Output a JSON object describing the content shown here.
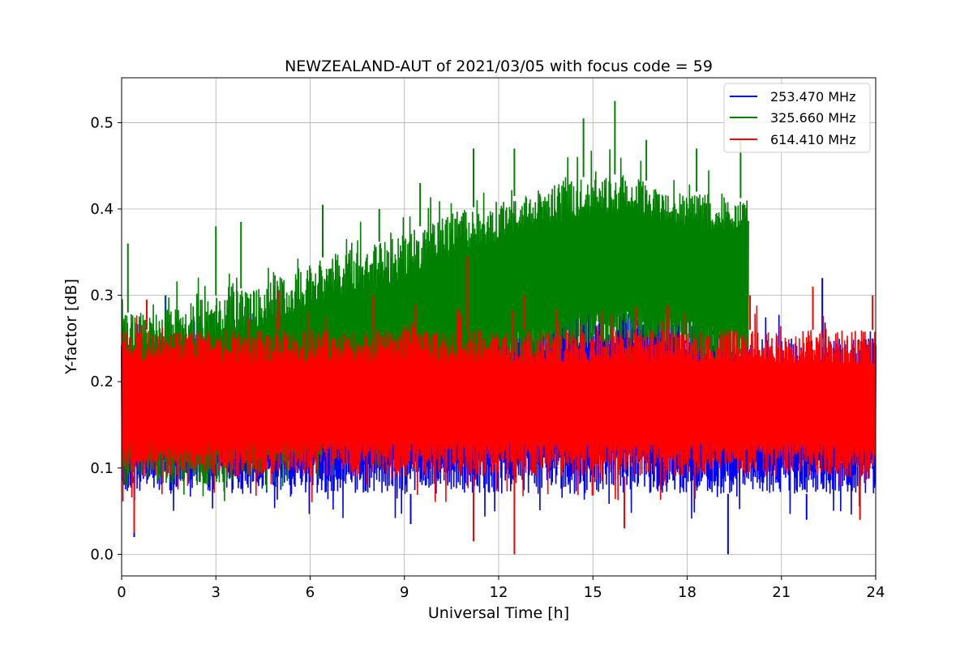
{
  "chart_data": {
    "type": "line",
    "title": "NEWZEALAND-AUT of 2021/03/05 with focus code = 59",
    "xlabel": "Universal Time [h]",
    "ylabel": "Y-factor [dB]",
    "xlim": [
      0,
      24
    ],
    "ylim": [
      -0.025,
      0.552
    ],
    "xticks": [
      0,
      3,
      6,
      9,
      12,
      15,
      18,
      21,
      24
    ],
    "xtick_labels": [
      "0",
      "3",
      "6",
      "9",
      "12",
      "15",
      "18",
      "21",
      "24"
    ],
    "yticks": [
      0.0,
      0.1,
      0.2,
      0.3,
      0.4,
      0.5
    ],
    "ytick_labels": [
      "0.0",
      "0.1",
      "0.2",
      "0.3",
      "0.4",
      "0.5"
    ],
    "grid": true,
    "legend_position": "top-right",
    "series": [
      {
        "name": "253.470 MHz",
        "color": "#0000ff",
        "x_hours": [
          0,
          1,
          2,
          3,
          4,
          5,
          6,
          7,
          8,
          9,
          10,
          11,
          12,
          13,
          14,
          15,
          16,
          17,
          18,
          19,
          20,
          21,
          22,
          23,
          24
        ],
        "band_low": [
          0.07,
          0.07,
          0.07,
          0.07,
          0.07,
          0.07,
          0.07,
          0.07,
          0.07,
          0.07,
          0.07,
          0.07,
          0.07,
          0.07,
          0.07,
          0.07,
          0.07,
          0.07,
          0.07,
          0.07,
          0.07,
          0.07,
          0.07,
          0.07,
          0.07
        ],
        "band_high": [
          0.25,
          0.25,
          0.25,
          0.25,
          0.25,
          0.25,
          0.25,
          0.25,
          0.25,
          0.25,
          0.25,
          0.25,
          0.26,
          0.27,
          0.28,
          0.29,
          0.29,
          0.28,
          0.27,
          0.26,
          0.25,
          0.25,
          0.25,
          0.25,
          0.25
        ],
        "spikes_high": [
          [
            1.4,
            0.3
          ],
          [
            14.5,
            0.3
          ],
          [
            16.7,
            0.3
          ],
          [
            19.2,
            0.3
          ],
          [
            22.3,
            0.32
          ]
        ],
        "spikes_low": [
          [
            0.4,
            0.02
          ],
          [
            9.2,
            0.035
          ],
          [
            19.3,
            0.0
          ],
          [
            21.8,
            0.04
          ]
        ]
      },
      {
        "name": "325.660 MHz",
        "color": "#008000",
        "x_hours": [
          0,
          1,
          2,
          3,
          4,
          5,
          6,
          7,
          8,
          9,
          10,
          11,
          12,
          13,
          14,
          15,
          16,
          17,
          18,
          19,
          19.95
        ],
        "band_low": [
          0.08,
          0.08,
          0.08,
          0.08,
          0.09,
          0.1,
          0.11,
          0.12,
          0.13,
          0.14,
          0.16,
          0.18,
          0.2,
          0.22,
          0.23,
          0.24,
          0.24,
          0.24,
          0.23,
          0.22,
          0.22
        ],
        "band_high": [
          0.28,
          0.28,
          0.29,
          0.3,
          0.31,
          0.32,
          0.34,
          0.35,
          0.36,
          0.37,
          0.39,
          0.4,
          0.41,
          0.42,
          0.43,
          0.44,
          0.44,
          0.43,
          0.42,
          0.42,
          0.41
        ],
        "spikes_high": [
          [
            0.2,
            0.36
          ],
          [
            3.0,
            0.38
          ],
          [
            3.8,
            0.385
          ],
          [
            6.4,
            0.405
          ],
          [
            8.2,
            0.4
          ],
          [
            9.5,
            0.43
          ],
          [
            11.2,
            0.47
          ],
          [
            12.5,
            0.47
          ],
          [
            14.7,
            0.505
          ],
          [
            15.7,
            0.525
          ],
          [
            16.7,
            0.48
          ],
          [
            18.3,
            0.47
          ],
          [
            19.7,
            0.48
          ]
        ]
      },
      {
        "name": "614.410 MHz",
        "color": "#ff0000",
        "x_hours": [
          0,
          1,
          2,
          3,
          4,
          5,
          6,
          7,
          8,
          9,
          10,
          11,
          12,
          13,
          14,
          15,
          16,
          17,
          18,
          19,
          20,
          21,
          22,
          23,
          24
        ],
        "band_low": [
          0.09,
          0.09,
          0.09,
          0.09,
          0.09,
          0.09,
          0.09,
          0.09,
          0.09,
          0.09,
          0.09,
          0.09,
          0.09,
          0.09,
          0.09,
          0.09,
          0.09,
          0.09,
          0.09,
          0.09,
          0.09,
          0.09,
          0.09,
          0.09,
          0.08
        ],
        "band_high": [
          0.26,
          0.26,
          0.26,
          0.26,
          0.26,
          0.26,
          0.26,
          0.26,
          0.26,
          0.26,
          0.26,
          0.26,
          0.26,
          0.26,
          0.26,
          0.26,
          0.26,
          0.26,
          0.26,
          0.26,
          0.26,
          0.26,
          0.26,
          0.26,
          0.26
        ],
        "spikes_high": [
          [
            0.8,
            0.295
          ],
          [
            5.0,
            0.305
          ],
          [
            8.0,
            0.3
          ],
          [
            11.0,
            0.345
          ],
          [
            12.8,
            0.3
          ],
          [
            20.0,
            0.3
          ],
          [
            22.0,
            0.31
          ],
          [
            23.9,
            0.3
          ]
        ],
        "spikes_low": [
          [
            0.4,
            0.025
          ],
          [
            11.2,
            0.015
          ],
          [
            12.5,
            0.0
          ],
          [
            16.0,
            0.03
          ],
          [
            23.5,
            0.04
          ]
        ]
      }
    ]
  }
}
